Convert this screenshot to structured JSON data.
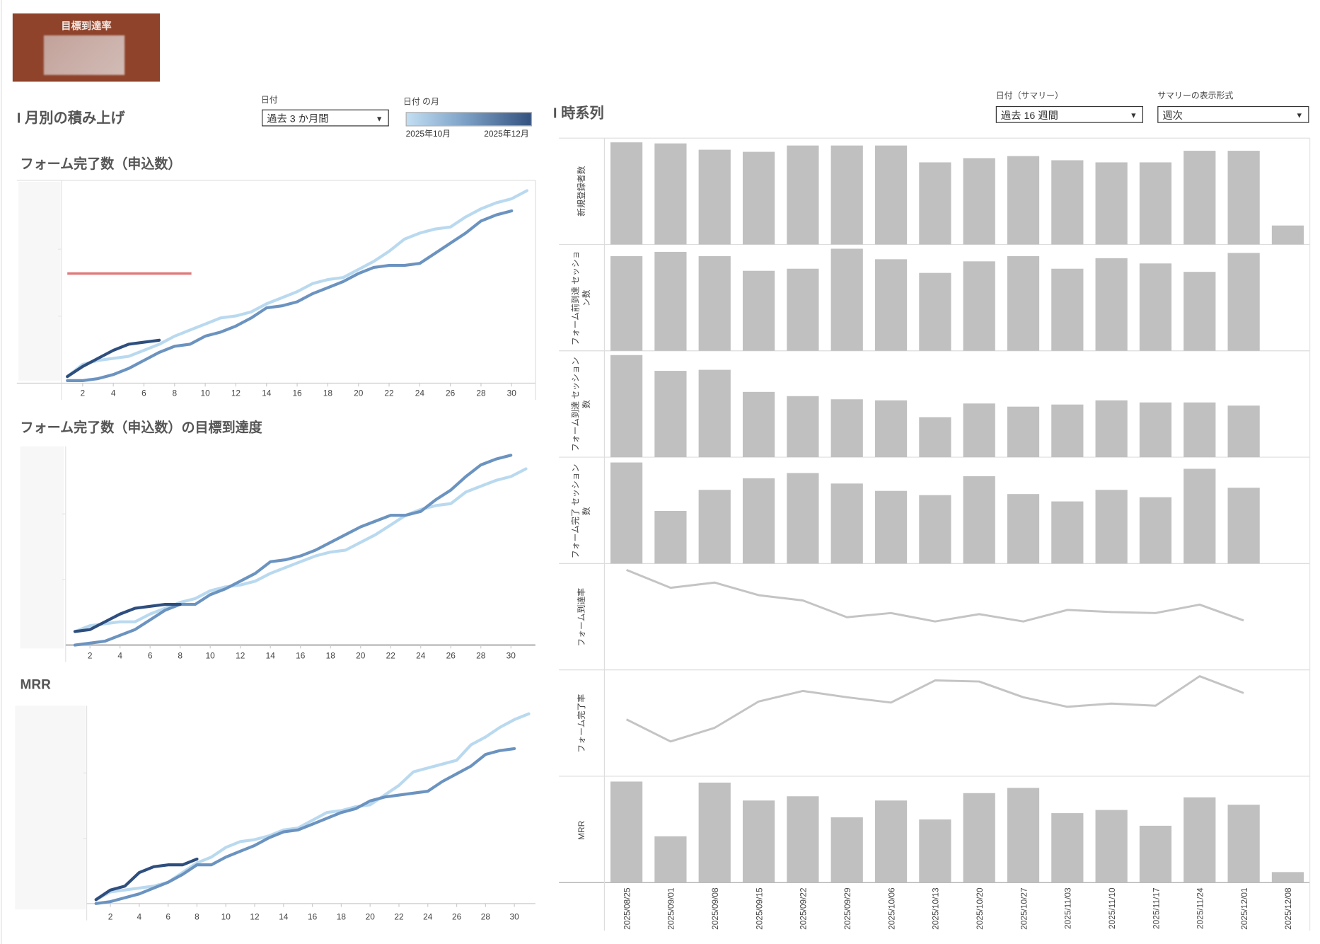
{
  "goal_card": {
    "title": "目標到達率"
  },
  "monthly": {
    "section_title": "I 月別の積み上げ",
    "date_filter": {
      "label": "日付",
      "value": "過去 3 か月間"
    },
    "month_legend": {
      "label": "日付 の月",
      "min_label": "2025年10月",
      "max_label": "2025年12月"
    }
  },
  "timeseries": {
    "section_title": "I 時系列",
    "date_filter": {
      "label": "日付（サマリー）",
      "value": "過去 16 週間"
    },
    "format_filter": {
      "label": "サマリーの表示形式",
      "value": "週次"
    }
  },
  "colors": {
    "oct": "#b9d9ef",
    "nov": "#6b93c0",
    "dec": "#2e4e7e",
    "target": "#e07a7a",
    "bar": "#c0c0c0",
    "ts_line": "#c4c4c4",
    "goal_card": "#8f432b"
  },
  "chart_data": [
    {
      "type": "line",
      "title": "フォーム完了数（申込数）",
      "xlabel": "",
      "ylabel": "",
      "ylim": [
        0,
        100
      ],
      "xticks": [
        "2",
        "4",
        "6",
        "8",
        "10",
        "12",
        "14",
        "16",
        "18",
        "20",
        "22",
        "24",
        "26",
        "28",
        "30"
      ],
      "series": [
        {
          "name": "2025年10月",
          "color_key": "oct",
          "values": [
            2,
            8,
            10,
            11,
            12,
            15,
            18,
            22,
            25,
            28,
            31,
            32,
            34,
            38,
            41,
            44,
            48,
            50,
            51,
            55,
            59,
            64,
            70,
            73,
            75,
            76,
            81,
            85,
            88,
            90,
            94
          ]
        },
        {
          "name": "2025年11月",
          "color_key": "nov",
          "values": [
            0,
            0,
            1,
            3,
            6,
            10,
            14,
            17,
            18,
            22,
            24,
            27,
            31,
            36,
            37,
            39,
            43,
            46,
            49,
            53,
            56,
            57,
            57,
            58,
            63,
            68,
            73,
            79,
            82,
            84
          ]
        },
        {
          "name": "2025年12月",
          "color_key": "dec",
          "values": [
            2,
            7,
            11,
            15,
            18,
            19,
            20
          ]
        }
      ],
      "reference_line": {
        "value": 53,
        "from_day": 1,
        "to_day": 9.1
      }
    },
    {
      "type": "line",
      "title": "フォーム完了数（申込数）の目標到達度",
      "xlabel": "",
      "ylabel": "",
      "ylim": [
        0,
        100
      ],
      "xticks": [
        "2",
        "4",
        "6",
        "8",
        "10",
        "12",
        "14",
        "16",
        "18",
        "20",
        "22",
        "24",
        "26",
        "28",
        "30"
      ],
      "series": [
        {
          "name": "2025年10月",
          "color_key": "oct",
          "values": [
            7,
            10,
            11,
            12,
            12,
            16,
            19,
            22,
            24,
            28,
            30,
            31,
            33,
            37,
            40,
            43,
            46,
            48,
            49,
            53,
            57,
            62,
            67,
            70,
            72,
            73,
            79,
            82,
            85,
            87,
            91
          ]
        },
        {
          "name": "2025年11月",
          "color_key": "nov",
          "values": [
            0,
            1,
            2,
            5,
            8,
            13,
            18,
            21,
            21,
            26,
            29,
            33,
            37,
            43,
            44,
            46,
            49,
            53,
            57,
            61,
            64,
            67,
            67,
            69,
            75,
            80,
            87,
            93,
            96,
            98
          ]
        },
        {
          "name": "2025年12月",
          "color_key": "dec",
          "values": [
            7,
            8,
            12,
            16,
            19,
            20,
            21,
            21
          ]
        }
      ]
    },
    {
      "type": "line",
      "title": "MRR",
      "xlabel": "",
      "ylabel": "",
      "ylim": [
        0,
        100
      ],
      "xticks": [
        "2",
        "4",
        "6",
        "8",
        "10",
        "12",
        "14",
        "16",
        "18",
        "20",
        "22",
        "24",
        "26",
        "28",
        "30"
      ],
      "series": [
        {
          "name": "2025年10月",
          "color_key": "oct",
          "values": [
            2,
            6,
            7,
            8,
            9,
            11,
            16,
            21,
            24,
            29,
            32,
            33,
            35,
            38,
            39,
            43,
            47,
            48,
            50,
            51,
            56,
            61,
            68,
            70,
            72,
            74,
            82,
            86,
            91,
            95,
            98
          ]
        },
        {
          "name": "2025年11月",
          "color_key": "nov",
          "values": [
            0,
            1,
            3,
            5,
            8,
            11,
            15,
            20,
            20,
            24,
            27,
            30,
            34,
            37,
            38,
            41,
            44,
            47,
            49,
            53,
            55,
            56,
            57,
            58,
            63,
            67,
            71,
            77,
            79,
            80
          ]
        },
        {
          "name": "2025年12月",
          "color_key": "dec",
          "values": [
            2,
            7,
            9,
            16,
            19,
            20,
            20,
            23
          ]
        }
      ]
    },
    {
      "type": "bar",
      "title": "時系列",
      "categories": [
        "2025/08/25",
        "2025/09/01",
        "2025/09/08",
        "2025/09/15",
        "2025/09/22",
        "2025/09/29",
        "2025/10/06",
        "2025/10/13",
        "2025/10/20",
        "2025/10/27",
        "2025/11/03",
        "2025/11/10",
        "2025/11/17",
        "2025/11/24",
        "2025/12/01",
        "2025/12/08"
      ],
      "ylim": [
        0,
        100
      ],
      "panels": [
        {
          "label": "新規登録者数",
          "mark": "bar",
          "values": [
            97,
            96,
            90,
            88,
            94,
            94,
            94,
            78,
            82,
            84,
            80,
            78,
            78,
            89,
            89,
            18
          ]
        },
        {
          "label": "フォーム前到達 セッション数",
          "mark": "bar",
          "values": [
            90,
            94,
            90,
            76,
            78,
            97,
            87,
            74,
            85,
            90,
            78,
            88,
            83,
            75,
            93,
            null
          ]
        },
        {
          "label": "フォーム到達 セッション数",
          "mark": "bar",
          "values": [
            97,
            82,
            83,
            62,
            58,
            55,
            54,
            38,
            51,
            48,
            50,
            54,
            52,
            52,
            49,
            null
          ]
        },
        {
          "label": "フォーム完了 セッション数",
          "mark": "bar",
          "values": [
            96,
            50,
            70,
            81,
            86,
            76,
            69,
            65,
            83,
            66,
            59,
            70,
            63,
            90,
            72,
            null
          ]
        },
        {
          "label": "フォーム到達率",
          "mark": "line",
          "values": [
            95,
            78,
            83,
            71,
            66,
            50,
            54,
            46,
            53,
            46,
            57,
            55,
            54,
            62,
            47,
            null
          ]
        },
        {
          "label": "フォーム完了率",
          "mark": "line",
          "values": [
            54,
            33,
            46,
            71,
            81,
            75,
            70,
            91,
            90,
            75,
            66,
            69,
            67,
            95,
            79,
            null
          ]
        },
        {
          "label": "MRR",
          "mark": "bar",
          "values": [
            96,
            44,
            95,
            78,
            82,
            62,
            78,
            60,
            85,
            90,
            66,
            69,
            54,
            81,
            74,
            10
          ]
        }
      ]
    }
  ]
}
